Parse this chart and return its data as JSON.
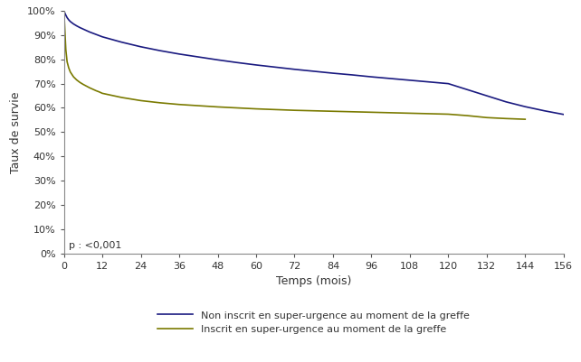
{
  "title": "",
  "xlabel": "Temps (mois)",
  "ylabel": "Taux de survie",
  "xlim": [
    0,
    156
  ],
  "ylim": [
    0,
    1.0
  ],
  "xticks": [
    0,
    12,
    24,
    36,
    48,
    60,
    72,
    84,
    96,
    108,
    120,
    132,
    144,
    156
  ],
  "yticks": [
    0.0,
    0.1,
    0.2,
    0.3,
    0.4,
    0.5,
    0.6,
    0.7,
    0.8,
    0.9,
    1.0
  ],
  "annotation": "p : <0,001",
  "line1_color": "#1a1a80",
  "line2_color": "#7a7a00",
  "legend1": "Non inscrit en super-urgence au moment de la greffe",
  "legend2": "Inscrit en super-urgence au moment de la greffe",
  "line1_x": [
    0,
    0.5,
    1,
    1.5,
    2,
    3,
    4,
    5,
    6,
    7,
    8,
    9,
    10,
    11,
    12,
    18,
    24,
    30,
    36,
    42,
    48,
    54,
    60,
    66,
    72,
    78,
    84,
    90,
    96,
    102,
    108,
    114,
    120,
    126,
    132,
    138,
    144,
    150,
    156
  ],
  "line1_y": [
    1.0,
    0.985,
    0.972,
    0.963,
    0.956,
    0.946,
    0.938,
    0.931,
    0.925,
    0.919,
    0.913,
    0.908,
    0.903,
    0.898,
    0.893,
    0.871,
    0.852,
    0.836,
    0.822,
    0.81,
    0.798,
    0.787,
    0.777,
    0.768,
    0.759,
    0.751,
    0.743,
    0.736,
    0.728,
    0.721,
    0.714,
    0.707,
    0.7,
    0.675,
    0.65,
    0.625,
    0.605,
    0.588,
    0.573
  ],
  "line2_x": [
    0,
    0.3,
    0.6,
    1,
    1.5,
    2,
    3,
    4,
    5,
    6,
    7,
    8,
    9,
    10,
    11,
    12,
    18,
    24,
    30,
    36,
    42,
    48,
    54,
    60,
    66,
    72,
    78,
    84,
    90,
    96,
    102,
    108,
    114,
    120,
    126,
    132,
    138,
    144
  ],
  "line2_y": [
    1.0,
    0.92,
    0.84,
    0.79,
    0.765,
    0.748,
    0.728,
    0.715,
    0.705,
    0.697,
    0.69,
    0.683,
    0.677,
    0.671,
    0.666,
    0.66,
    0.643,
    0.63,
    0.621,
    0.614,
    0.609,
    0.604,
    0.6,
    0.596,
    0.593,
    0.59,
    0.588,
    0.586,
    0.584,
    0.582,
    0.58,
    0.578,
    0.576,
    0.574,
    0.568,
    0.56,
    0.556,
    0.553
  ],
  "background_color": "#ffffff",
  "spine_color": "#888888",
  "tick_color": "#555555"
}
